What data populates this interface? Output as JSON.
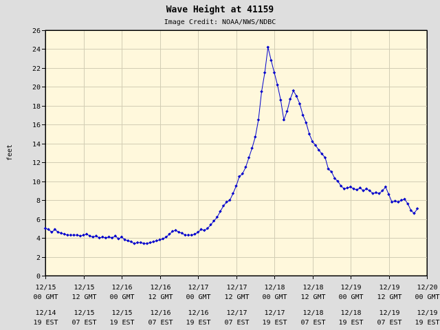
{
  "chart_data": {
    "type": "line",
    "title": "Wave Height at 41159",
    "subtitle": "Image Credit: NOAA/NWS/NDBC",
    "ylabel": "feet",
    "xlabel": "",
    "ylim": [
      0,
      26
    ],
    "y_ticks": [
      0,
      2,
      4,
      6,
      8,
      10,
      12,
      14,
      16,
      18,
      20,
      22,
      24,
      26
    ],
    "x_unit": "hours since 12/15 00 GMT",
    "x_range": [
      0,
      120
    ],
    "x_ticks": [
      {
        "x": 0,
        "gmt_date": "12/15",
        "gmt_time": "00 GMT",
        "est_date": "12/14",
        "est_time": "19 EST"
      },
      {
        "x": 12,
        "gmt_date": "12/15",
        "gmt_time": "12 GMT",
        "est_date": "12/15",
        "est_time": "07 EST"
      },
      {
        "x": 24,
        "gmt_date": "12/16",
        "gmt_time": "00 GMT",
        "est_date": "12/15",
        "est_time": "19 EST"
      },
      {
        "x": 36,
        "gmt_date": "12/16",
        "gmt_time": "12 GMT",
        "est_date": "12/16",
        "est_time": "07 EST"
      },
      {
        "x": 48,
        "gmt_date": "12/17",
        "gmt_time": "00 GMT",
        "est_date": "12/16",
        "est_time": "19 EST"
      },
      {
        "x": 60,
        "gmt_date": "12/17",
        "gmt_time": "12 GMT",
        "est_date": "12/17",
        "est_time": "07 EST"
      },
      {
        "x": 72,
        "gmt_date": "12/18",
        "gmt_time": "00 GMT",
        "est_date": "12/17",
        "est_time": "19 EST"
      },
      {
        "x": 84,
        "gmt_date": "12/18",
        "gmt_time": "12 GMT",
        "est_date": "12/18",
        "est_time": "07 EST"
      },
      {
        "x": 96,
        "gmt_date": "12/19",
        "gmt_time": "00 GMT",
        "est_date": "12/18",
        "est_time": "19 EST"
      },
      {
        "x": 108,
        "gmt_date": "12/19",
        "gmt_time": "12 GMT",
        "est_date": "12/19",
        "est_time": "07 EST"
      },
      {
        "x": 120,
        "gmt_date": "12/20",
        "gmt_time": "00 GMT",
        "est_date": "12/19",
        "est_time": "19 EST"
      }
    ],
    "grid": true,
    "series": [
      {
        "name": "",
        "color": "#0000cc",
        "marker": "diamond",
        "points": [
          [
            0,
            5.0
          ],
          [
            1,
            4.9
          ],
          [
            2,
            4.6
          ],
          [
            3,
            4.9
          ],
          [
            4,
            4.6
          ],
          [
            5,
            4.5
          ],
          [
            6,
            4.4
          ],
          [
            7,
            4.3
          ],
          [
            8,
            4.3
          ],
          [
            9,
            4.3
          ],
          [
            10,
            4.3
          ],
          [
            11,
            4.2
          ],
          [
            12,
            4.3
          ],
          [
            13,
            4.4
          ],
          [
            14,
            4.2
          ],
          [
            15,
            4.1
          ],
          [
            16,
            4.2
          ],
          [
            17,
            4.0
          ],
          [
            18,
            4.1
          ],
          [
            19,
            4.0
          ],
          [
            20,
            4.1
          ],
          [
            21,
            4.0
          ],
          [
            22,
            4.2
          ],
          [
            23,
            3.9
          ],
          [
            24,
            4.1
          ],
          [
            25,
            3.8
          ],
          [
            26,
            3.7
          ],
          [
            27,
            3.6
          ],
          [
            28,
            3.4
          ],
          [
            29,
            3.5
          ],
          [
            30,
            3.5
          ],
          [
            31,
            3.4
          ],
          [
            32,
            3.4
          ],
          [
            33,
            3.5
          ],
          [
            34,
            3.6
          ],
          [
            35,
            3.7
          ],
          [
            36,
            3.8
          ],
          [
            37,
            3.9
          ],
          [
            38,
            4.1
          ],
          [
            39,
            4.4
          ],
          [
            40,
            4.7
          ],
          [
            41,
            4.8
          ],
          [
            42,
            4.6
          ],
          [
            43,
            4.5
          ],
          [
            44,
            4.3
          ],
          [
            45,
            4.3
          ],
          [
            46,
            4.3
          ],
          [
            47,
            4.4
          ],
          [
            48,
            4.6
          ],
          [
            49,
            4.9
          ],
          [
            50,
            4.8
          ],
          [
            51,
            5.0
          ],
          [
            52,
            5.4
          ],
          [
            53,
            5.8
          ],
          [
            54,
            6.2
          ],
          [
            55,
            6.8
          ],
          [
            56,
            7.4
          ],
          [
            57,
            7.8
          ],
          [
            58,
            8.0
          ],
          [
            59,
            8.7
          ],
          [
            60,
            9.5
          ],
          [
            61,
            10.5
          ],
          [
            62,
            10.8
          ],
          [
            63,
            11.5
          ],
          [
            64,
            12.5
          ],
          [
            65,
            13.5
          ],
          [
            66,
            14.7
          ],
          [
            67,
            16.5
          ],
          [
            68,
            19.5
          ],
          [
            69,
            21.5
          ],
          [
            70,
            24.2
          ],
          [
            71,
            22.8
          ],
          [
            72,
            21.5
          ],
          [
            73,
            20.2
          ],
          [
            74,
            18.6
          ],
          [
            75,
            16.5
          ],
          [
            76,
            17.4
          ],
          [
            77,
            18.7
          ],
          [
            78,
            19.6
          ],
          [
            79,
            19.0
          ],
          [
            80,
            18.2
          ],
          [
            81,
            17.0
          ],
          [
            82,
            16.2
          ],
          [
            83,
            15.0
          ],
          [
            84,
            14.2
          ],
          [
            85,
            13.8
          ],
          [
            86,
            13.3
          ],
          [
            87,
            12.9
          ],
          [
            88,
            12.5
          ],
          [
            89,
            11.3
          ],
          [
            90,
            11.0
          ],
          [
            91,
            10.3
          ],
          [
            92,
            10.0
          ],
          [
            93,
            9.5
          ],
          [
            94,
            9.2
          ],
          [
            95,
            9.3
          ],
          [
            96,
            9.4
          ],
          [
            97,
            9.2
          ],
          [
            98,
            9.1
          ],
          [
            99,
            9.3
          ],
          [
            100,
            9.0
          ],
          [
            101,
            9.2
          ],
          [
            102,
            9.0
          ],
          [
            103,
            8.7
          ],
          [
            104,
            8.8
          ],
          [
            105,
            8.7
          ],
          [
            106,
            9.0
          ],
          [
            107,
            9.4
          ],
          [
            108,
            8.6
          ],
          [
            109,
            7.8
          ],
          [
            110,
            7.9
          ],
          [
            111,
            7.8
          ],
          [
            112,
            8.0
          ],
          [
            113,
            8.1
          ],
          [
            114,
            7.6
          ],
          [
            115,
            6.9
          ],
          [
            116,
            6.6
          ],
          [
            117,
            7.1
          ]
        ]
      }
    ]
  }
}
